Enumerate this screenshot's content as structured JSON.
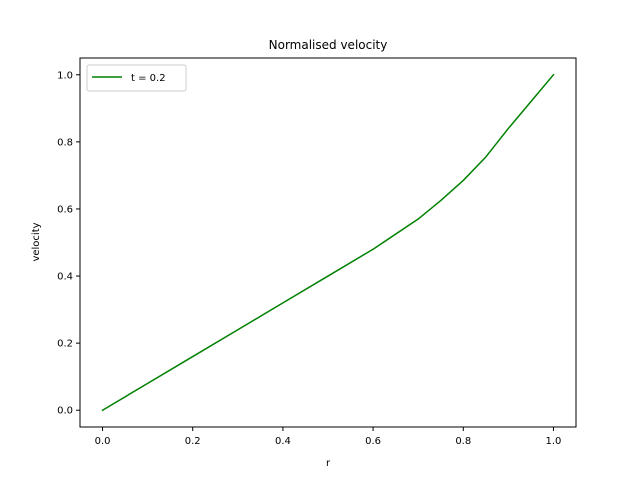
{
  "chart_data": {
    "type": "line",
    "title": "Normalised velocity",
    "xlabel": "r",
    "ylabel": "velocity",
    "xlim": [
      -0.05,
      1.05
    ],
    "ylim": [
      -0.05,
      1.05
    ],
    "xticks": [
      0.0,
      0.2,
      0.4,
      0.6,
      0.8,
      1.0
    ],
    "xtick_labels": [
      "0.0",
      "0.2",
      "0.4",
      "0.6",
      "0.8",
      "1.0"
    ],
    "yticks": [
      0.0,
      0.2,
      0.4,
      0.6,
      0.8,
      1.0
    ],
    "ytick_labels": [
      "0.0",
      "0.2",
      "0.4",
      "0.6",
      "0.8",
      "1.0"
    ],
    "grid": false,
    "legend_position": "top-left",
    "series": [
      {
        "name": "t = 0.2",
        "color": "#008000",
        "x": [
          0.0,
          0.1,
          0.2,
          0.3,
          0.4,
          0.5,
          0.6,
          0.7,
          0.75,
          0.8,
          0.85,
          0.9,
          0.95,
          1.0
        ],
        "y": [
          0.0,
          0.08,
          0.16,
          0.24,
          0.32,
          0.4,
          0.48,
          0.57,
          0.625,
          0.685,
          0.755,
          0.84,
          0.92,
          1.0
        ]
      }
    ]
  }
}
